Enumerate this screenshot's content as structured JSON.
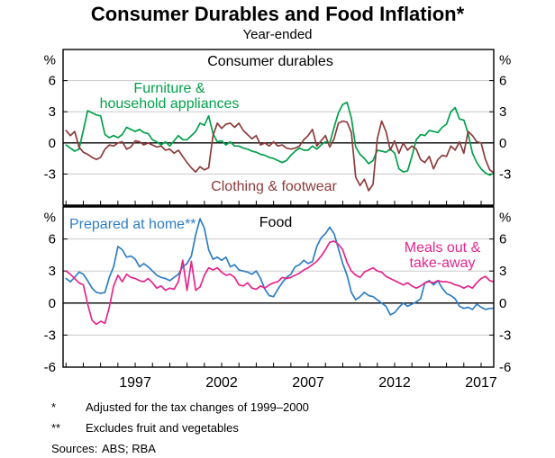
{
  "title": "Consumer Durables and Food Inflation*",
  "subtitle": "Year-ended",
  "footnotes": [
    {
      "marker": "*",
      "text": "Adjusted for the tax changes of 1999–2000"
    },
    {
      "marker": "**",
      "text": "Excludes fruit and vegetables"
    }
  ],
  "sources": {
    "label": "Sources:",
    "value": "ABS; RBA"
  },
  "colors": {
    "furniture_green": "#00a14b",
    "clothing_maroon": "#8d3b3b",
    "prepared_blue": "#2e7ec5",
    "meals_pink": "#e6258c",
    "grid": "#c9c9c9",
    "axis": "#000000"
  },
  "chart_data": [
    {
      "type": "line",
      "title": "Consumer durables",
      "unit": "%",
      "x_start": 1993.0,
      "x_step": 0.25,
      "xlim": [
        1992.83,
        2017.73
      ],
      "ylim": [
        -6,
        9
      ],
      "yticks": [
        -3,
        0,
        3,
        6
      ],
      "xticks": [
        1997,
        2002,
        2007,
        2012,
        2017
      ],
      "grid": true,
      "legend_position": "inline-labels",
      "series": [
        {
          "name": "Furniture & household appliances",
          "label": "Furniture &\nhousehold appliances",
          "color": "#00a14b",
          "values": [
            -0.2,
            -0.5,
            -0.8,
            -0.6,
            1.2,
            3.1,
            2.9,
            2.7,
            2.6,
            0.8,
            0.5,
            0.7,
            0.5,
            0.8,
            1.5,
            1.3,
            1.1,
            1.3,
            1.0,
            0.9,
            0.3,
            0.1,
            -0.2,
            0.1,
            -0.3,
            0.2,
            0.7,
            0.3,
            0.3,
            0.7,
            1.1,
            1.9,
            1.7,
            2.6,
            0.9,
            0.1,
            0.2,
            -0.2,
            0.1,
            -0.3,
            -0.3,
            -0.5,
            -0.6,
            -0.8,
            -0.9,
            -1.1,
            -1.2,
            -1.4,
            -1.5,
            -1.7,
            -1.9,
            -1.7,
            -1.2,
            -0.8,
            -0.5,
            -0.7,
            -0.7,
            -0.3,
            -0.6,
            -0.2,
            0.1,
            0.0,
            1.5,
            2.9,
            3.7,
            3.9,
            2.4,
            -0.4,
            -1.1,
            -1.5,
            -2.0,
            -1.7,
            -0.7,
            -0.8,
            -0.9,
            -0.6,
            -1.0,
            -2.5,
            -2.8,
            -2.7,
            -1.3,
            0.3,
            0.8,
            0.7,
            1.2,
            1.1,
            1.0,
            1.5,
            1.8,
            3.0,
            3.4,
            2.3,
            2.2,
            0.9,
            -1.0,
            -1.9,
            -2.5,
            -2.9,
            -3.1,
            -2.9
          ]
        },
        {
          "name": "Clothing & footwear",
          "label": "Clothing & footwear",
          "color": "#8d3b3b",
          "values": [
            1.2,
            0.7,
            1.1,
            -0.4,
            -0.9,
            -1.1,
            -1.4,
            -1.6,
            -1.4,
            -0.6,
            -0.2,
            -0.3,
            0.0,
            0.1,
            -0.6,
            -0.4,
            0.2,
            0.1,
            -0.2,
            0.0,
            -0.2,
            -0.4,
            -0.3,
            -0.7,
            -0.6,
            -1.0,
            -0.7,
            -1.3,
            -1.9,
            -2.4,
            -2.8,
            -2.3,
            -2.6,
            -2.4,
            0.7,
            1.9,
            1.4,
            1.8,
            1.9,
            1.5,
            1.9,
            1.2,
            0.8,
            0.4,
            0.7,
            -0.2,
            0.0,
            -0.3,
            0.1,
            -0.3,
            -0.2,
            -0.5,
            -0.6,
            -0.5,
            -0.3,
            0.3,
            0.7,
            1.3,
            -0.3,
            0.2,
            0.7,
            -0.4,
            0.4,
            1.9,
            2.1,
            2.0,
            1.0,
            -3.3,
            -4.1,
            -3.5,
            -4.6,
            -4.0,
            0.4,
            2.1,
            1.1,
            -0.7,
            0.2,
            -1.0,
            0.0,
            -0.7,
            -0.3,
            -0.6,
            -1.6,
            -1.9,
            -1.3,
            -2.5,
            -1.6,
            -1.2,
            -1.3,
            -0.3,
            -0.7,
            0.1,
            -1.0,
            1.1,
            0.7,
            0.1,
            0.0,
            -1.6,
            -2.6,
            -2.9
          ]
        }
      ]
    },
    {
      "type": "line",
      "title": "Food",
      "unit": "%",
      "x_start": 1993.0,
      "x_step": 0.25,
      "xlim": [
        1992.83,
        2017.73
      ],
      "ylim": [
        -6,
        9
      ],
      "yticks": [
        -6,
        -3,
        0,
        3,
        6
      ],
      "xticks": [
        1997,
        2002,
        2007,
        2012,
        2017
      ],
      "grid": true,
      "legend_position": "inline-labels",
      "series": [
        {
          "name": "Prepared at home",
          "label": "Prepared at home**",
          "color": "#2e7ec5",
          "values": [
            2.3,
            2.0,
            2.4,
            2.9,
            2.7,
            2.1,
            1.4,
            1.0,
            0.9,
            1.0,
            2.4,
            3.4,
            5.3,
            5.0,
            4.3,
            4.4,
            4.1,
            3.4,
            3.7,
            3.4,
            3.0,
            2.6,
            2.4,
            2.3,
            2.1,
            2.4,
            2.7,
            3.4,
            3.7,
            4.4,
            6.4,
            7.9,
            7.0,
            5.0,
            4.1,
            4.3,
            4.0,
            4.3,
            3.4,
            3.6,
            3.1,
            3.0,
            2.9,
            2.7,
            3.0,
            2.3,
            1.3,
            0.7,
            0.6,
            1.3,
            1.9,
            2.4,
            2.7,
            3.4,
            3.6,
            4.0,
            3.7,
            3.9,
            5.3,
            6.1,
            6.5,
            7.1,
            6.5,
            5.1,
            3.7,
            2.6,
            1.0,
            0.3,
            0.6,
            1.0,
            0.7,
            0.6,
            0.3,
            0.0,
            -0.3,
            -1.1,
            -0.9,
            -0.4,
            0.0,
            -0.3,
            -0.1,
            0.1,
            0.4,
            1.9,
            2.1,
            1.7,
            2.1,
            1.4,
            0.9,
            0.7,
            0.4,
            -0.3,
            -0.5,
            -0.4,
            -0.6,
            -0.1,
            -0.4,
            -0.6,
            -0.5,
            -0.5
          ]
        },
        {
          "name": "Meals out & take-away",
          "label": "Meals out &\ntake-away",
          "color": "#e6258c",
          "values": [
            3.0,
            2.7,
            2.3,
            1.9,
            1.7,
            -0.1,
            -1.6,
            -2.0,
            -1.7,
            -1.9,
            -0.4,
            1.6,
            2.6,
            2.0,
            2.7,
            2.4,
            2.3,
            2.1,
            2.0,
            2.3,
            1.9,
            1.4,
            1.6,
            1.2,
            1.4,
            1.3,
            2.0,
            4.0,
            1.2,
            3.9,
            1.2,
            1.5,
            2.6,
            3.3,
            3.1,
            3.3,
            2.9,
            2.6,
            2.7,
            2.4,
            1.7,
            1.6,
            1.9,
            1.4,
            1.3,
            1.6,
            1.4,
            1.7,
            1.9,
            2.0,
            2.4,
            2.3,
            2.4,
            2.6,
            2.8,
            3.1,
            3.3,
            3.6,
            3.9,
            4.4,
            5.0,
            5.7,
            5.8,
            5.5,
            5.0,
            3.8,
            3.0,
            2.6,
            2.4,
            2.9,
            3.1,
            3.3,
            3.0,
            2.9,
            2.5,
            2.3,
            2.1,
            1.9,
            1.7,
            1.9,
            1.6,
            1.4,
            1.6,
            1.9,
            2.0,
            1.9,
            2.1,
            2.0,
            2.0,
            1.9,
            1.7,
            1.6,
            1.4,
            1.6,
            1.4,
            1.9,
            2.3,
            2.5,
            2.1,
            2.0
          ]
        }
      ]
    }
  ]
}
